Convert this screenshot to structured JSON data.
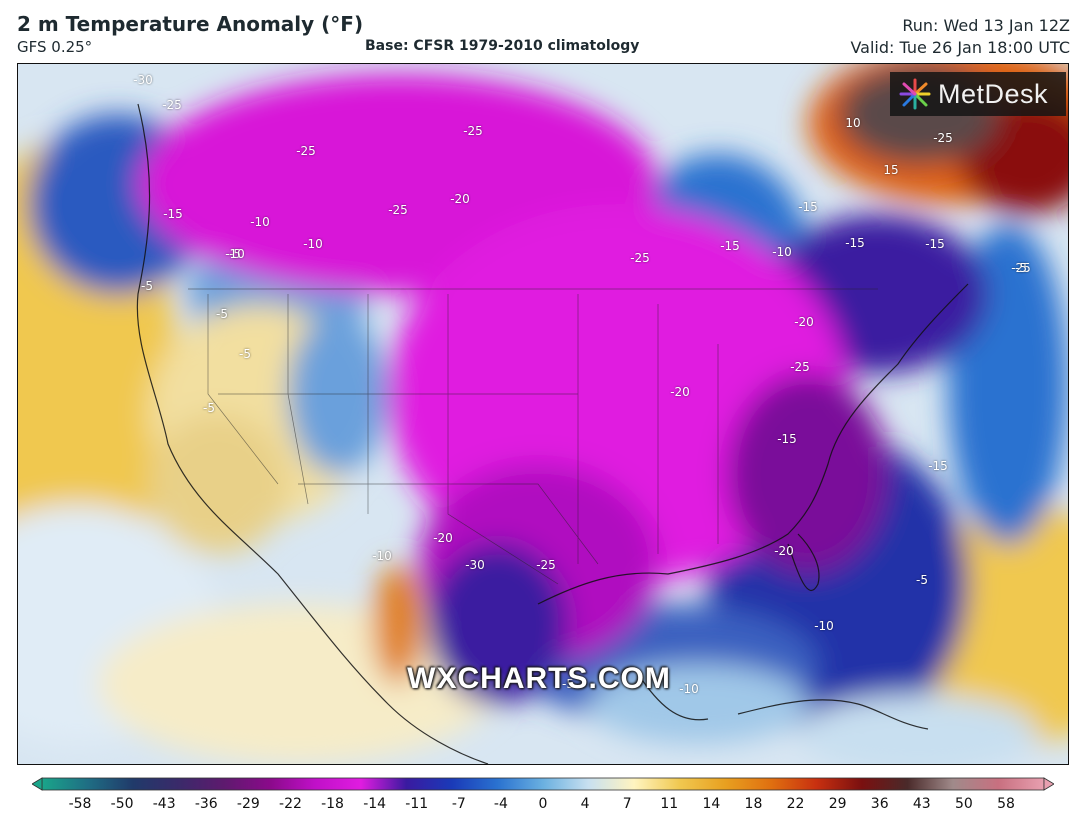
{
  "header": {
    "title": "2 m Temperature Anomaly (°F)",
    "model": "GFS 0.25°",
    "base": "Base: CFSR 1979-2010 climatology",
    "run": "Run: Wed 13 Jan 12Z",
    "valid": "Valid: Tue 26 Jan 18:00 UTC"
  },
  "branding": {
    "logo_text": "MetDesk",
    "watermark": "WXCHARTS.COM"
  },
  "map": {
    "region": "North America",
    "contour_labels": [
      "-30",
      "-25",
      "-25",
      "-25",
      "-20",
      "-25",
      "-15",
      "-10",
      "-10",
      "-5",
      "-5",
      "-5",
      "-5",
      "-5",
      "-10",
      "-15",
      "-10",
      "-15",
      "-15",
      "-20",
      "-25",
      "-20",
      "-15",
      "-15",
      "-25",
      "-20",
      "-30",
      "-25",
      "-10",
      "-20",
      "-10",
      "-5",
      "-5",
      "-10",
      "10",
      "-25",
      "15",
      "-25",
      "-5",
      "-15"
    ]
  },
  "colorbar": {
    "ticks": [
      "-58",
      "-50",
      "-43",
      "-36",
      "-29",
      "-22",
      "-18",
      "-14",
      "-11",
      "-7",
      "-4",
      "0",
      "4",
      "7",
      "11",
      "14",
      "18",
      "22",
      "29",
      "36",
      "43",
      "50",
      "58"
    ],
    "colors": [
      "#1aa58a",
      "#1f6e84",
      "#203a6a",
      "#3a2a6a",
      "#5e1a6e",
      "#8a0a8a",
      "#c010c8",
      "#e01ce0",
      "#3a1aa0",
      "#1a3ab8",
      "#2a72d0",
      "#6ab0e0",
      "#c8e0f0",
      "#fff4c0",
      "#f0c850",
      "#e8a020",
      "#e07010",
      "#c83010",
      "#7a1010",
      "#4a2a2a",
      "#a08a8a",
      "#c87080",
      "#e8a0b0"
    ],
    "min": -58,
    "max": 58
  }
}
